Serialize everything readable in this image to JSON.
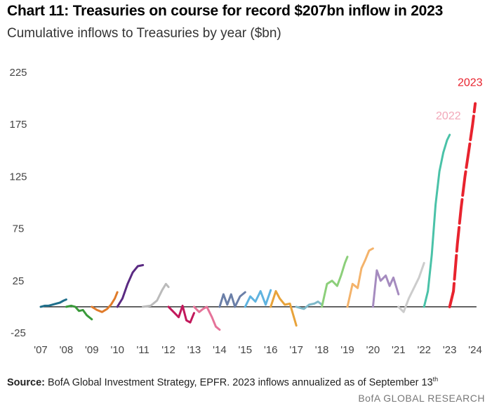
{
  "chart_data": {
    "type": "line",
    "title": "Chart 11: Treasuries on course for record $207bn inflow in 2023",
    "subtitle": "Cumulative inflows to Treasuries by year ($bn)",
    "xlabel": "",
    "ylabel": "",
    "ylim": [
      -25,
      225
    ],
    "xlim": [
      2007,
      2024.3
    ],
    "y_ticks": [
      "225",
      "175",
      "125",
      "75",
      "25",
      "-25"
    ],
    "y_tick_values": [
      225,
      175,
      125,
      75,
      25,
      -25
    ],
    "x_ticks": [
      "'07",
      "'08",
      "'09",
      "'10",
      "'11",
      "'12",
      "'13",
      "'14",
      "'15",
      "'16",
      "'17",
      "'18",
      "'19",
      "'20",
      "'21",
      "'22",
      "'23",
      "'24"
    ],
    "x_tick_values": [
      2007,
      2008,
      2009,
      2010,
      2011,
      2012,
      2013,
      2014,
      2015,
      2016,
      2017,
      2018,
      2019,
      2020,
      2021,
      2022,
      2023,
      2024
    ],
    "zero_line": 0,
    "legend": "none",
    "grid": false,
    "series": [
      {
        "color": "#1f6f8b",
        "x": [
          2007.0,
          2007.15,
          2007.3,
          2007.45,
          2007.6,
          2007.75,
          2007.9,
          2008.0
        ],
        "y": [
          0,
          1,
          1,
          2,
          3,
          4,
          6,
          7
        ]
      },
      {
        "color": "#3a9a3a",
        "x": [
          2008.0,
          2008.2,
          2008.35,
          2008.5,
          2008.65,
          2008.8,
          2009.0
        ],
        "y": [
          0,
          1,
          0,
          -4,
          -3,
          -8,
          -12
        ]
      },
      {
        "color": "#e07b2a",
        "x": [
          2009.0,
          2009.2,
          2009.4,
          2009.6,
          2009.75,
          2009.9,
          2010.0
        ],
        "y": [
          0,
          -3,
          -5,
          -2,
          2,
          8,
          14
        ]
      },
      {
        "color": "#5a2a82",
        "x": [
          2010.0,
          2010.2,
          2010.4,
          2010.6,
          2010.8,
          2011.0
        ],
        "y": [
          0,
          8,
          22,
          33,
          39,
          40
        ]
      },
      {
        "color": "#bbbbbb",
        "x": [
          2011.0,
          2011.3,
          2011.55,
          2011.75,
          2011.9,
          2012.0
        ],
        "y": [
          0,
          1,
          6,
          16,
          22,
          19
        ]
      },
      {
        "color": "#c2185b",
        "x": [
          2012.0,
          2012.2,
          2012.4,
          2012.55,
          2012.7,
          2012.85,
          2013.0
        ],
        "y": [
          0,
          -5,
          -10,
          1,
          -13,
          -15,
          -6
        ]
      },
      {
        "color": "#e57399",
        "x": [
          2013.0,
          2013.2,
          2013.35,
          2013.5,
          2013.7,
          2013.85,
          2014.0
        ],
        "y": [
          0,
          -5,
          -2,
          0,
          -10,
          -19,
          -22
        ]
      },
      {
        "color": "#6b7fa8",
        "x": [
          2014.0,
          2014.15,
          2014.3,
          2014.45,
          2014.6,
          2014.8,
          2015.0
        ],
        "y": [
          0,
          12,
          2,
          12,
          0,
          10,
          14
        ]
      },
      {
        "color": "#5fb3e0",
        "x": [
          2015.0,
          2015.2,
          2015.4,
          2015.6,
          2015.8,
          2016.0
        ],
        "y": [
          0,
          10,
          5,
          15,
          2,
          16
        ]
      },
      {
        "color": "#e8a33a",
        "x": [
          2016.0,
          2016.2,
          2016.35,
          2016.55,
          2016.75,
          2017.0
        ],
        "y": [
          0,
          15,
          8,
          2,
          3,
          -18
        ]
      },
      {
        "color": "#7fb9c9",
        "x": [
          2017.0,
          2017.3,
          2017.5,
          2017.7,
          2017.85,
          2018.0
        ],
        "y": [
          0,
          -2,
          2,
          3,
          5,
          2
        ]
      },
      {
        "color": "#8ccf7a",
        "x": [
          2018.0,
          2018.2,
          2018.4,
          2018.6,
          2018.75,
          2018.9,
          2019.0
        ],
        "y": [
          0,
          22,
          25,
          20,
          30,
          42,
          48
        ]
      },
      {
        "color": "#f4b36b",
        "x": [
          2019.0,
          2019.2,
          2019.4,
          2019.55,
          2019.7,
          2019.85,
          2020.0
        ],
        "y": [
          0,
          22,
          18,
          37,
          45,
          54,
          56
        ]
      },
      {
        "color": "#a58bbf",
        "x": [
          2020.0,
          2020.15,
          2020.3,
          2020.5,
          2020.65,
          2020.8,
          2021.0
        ],
        "y": [
          0,
          35,
          25,
          30,
          20,
          28,
          12
        ]
      },
      {
        "color": "#cccccc",
        "x": [
          2021.0,
          2021.2,
          2021.4,
          2021.6,
          2021.8,
          2022.0
        ],
        "y": [
          0,
          -5,
          8,
          18,
          28,
          42
        ]
      },
      {
        "color": "#4ac2a8",
        "x": [
          2022.0,
          2022.15,
          2022.3,
          2022.45,
          2022.6,
          2022.75,
          2022.9,
          2023.0
        ],
        "y": [
          0,
          15,
          50,
          98,
          130,
          148,
          160,
          165
        ]
      },
      {
        "color": "#e8232e",
        "x": [
          2023.0,
          2023.15,
          2023.3,
          2023.45,
          2023.6,
          2023.75,
          2023.9,
          2024.0
        ],
        "y": [
          0,
          15,
          60,
          95,
          125,
          150,
          175,
          195
        ]
      }
    ],
    "annotations": [
      {
        "text": "2022",
        "color": "#f2a7b8",
        "x": 2022.95,
        "y": 180
      },
      {
        "text": "2023",
        "color": "#e8232e",
        "x": 2023.8,
        "y": 212
      }
    ]
  },
  "footer": {
    "source_label": "Source:",
    "source_text": " BofA Global Investment Strategy, EPFR. 2023  inflows annualized as of September  13",
    "source_sup": "th",
    "brand": "BofA GLOBAL RESEARCH"
  }
}
